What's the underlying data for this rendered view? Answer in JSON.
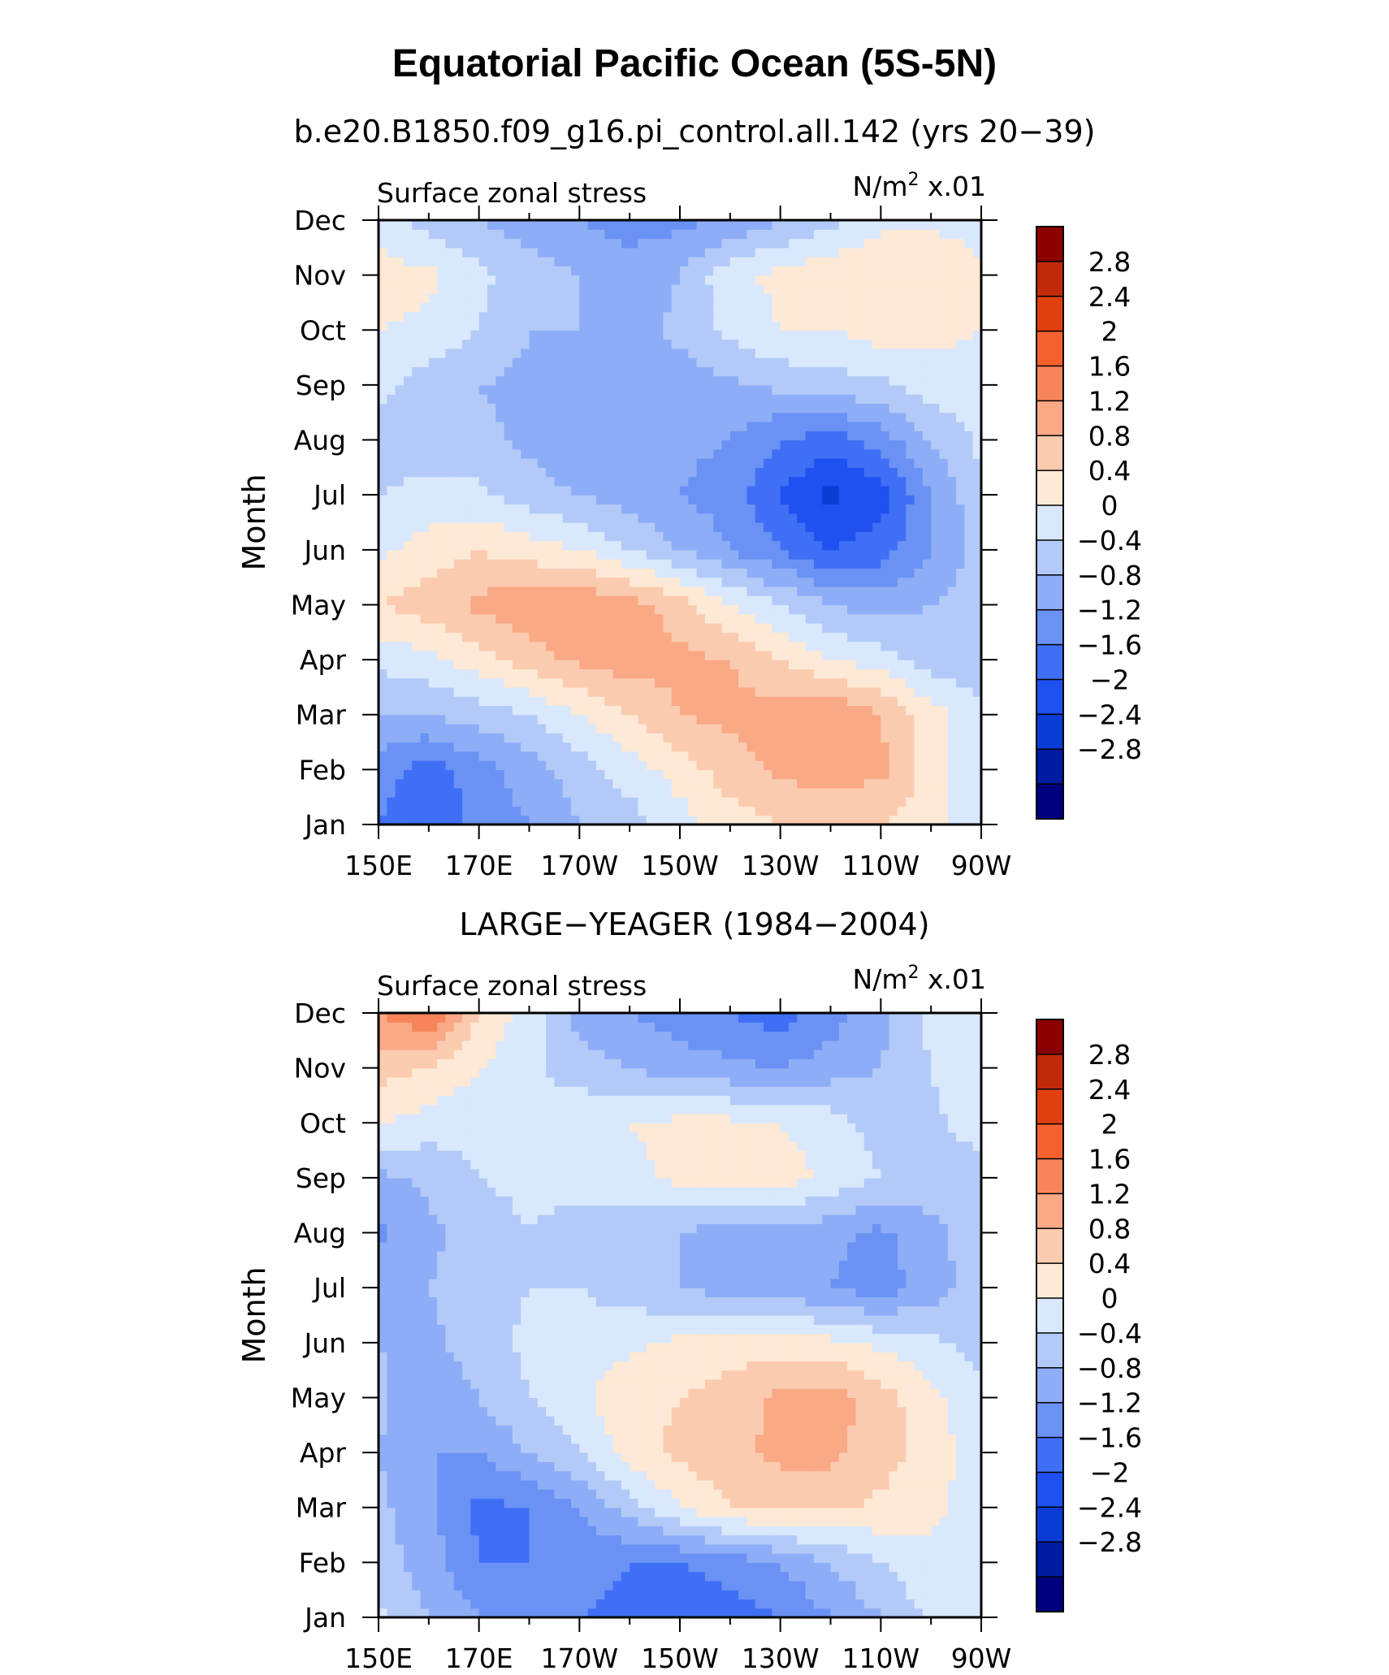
{
  "title": "Equatorial Pacific Ocean (5S-5N)",
  "colors": [
    "#00007f",
    "#001ba0",
    "#0b3cd6",
    "#1f50f0",
    "#3f6ff5",
    "#6a92f5",
    "#8eadf7",
    "#b3caf8",
    "#d9e8fc",
    "#fde9d5",
    "#fbcbb0",
    "#f9a985",
    "#f7855b",
    "#f4612f",
    "#e03f10",
    "#c02a0a",
    "#8b0000"
  ],
  "colorbar": {
    "labels": [
      "2.8",
      "2.4",
      "2",
      "1.6",
      "1.2",
      "0.8",
      "0.4",
      "0",
      "−0.4",
      "−0.8",
      "−1.2",
      "−1.6",
      "−2",
      "−2.4",
      "−2.8"
    ]
  },
  "panels": [
    {
      "subtitle": "b.e20.B1850.f09_g16.pi_control.all.142 (yrs 20−39)",
      "left_label": "Surface zonal stress",
      "right_label_main": "N/m",
      "right_label_sup": "2",
      "right_label_tail": " x.01"
    },
    {
      "subtitle": "LARGE−YEAGER (1984−2004)",
      "left_label": "Surface zonal stress",
      "right_label_main": "N/m",
      "right_label_sup": "2",
      "right_label_tail": " x.01"
    }
  ],
  "chart_data": [
    {
      "type": "heatmap",
      "title": "Equatorial Pacific Ocean (5S-5N)",
      "subtitle": "b.e20.B1850.f09_g16.pi_control.all.142 (yrs 20−39)",
      "xlabel": "",
      "ylabel": "Month",
      "x_ticks": [
        "150E",
        "170E",
        "170W",
        "150W",
        "130W",
        "110W",
        "90W"
      ],
      "y_ticks": [
        "Jan",
        "Feb",
        "Mar",
        "Apr",
        "May",
        "Jun",
        "Jul",
        "Aug",
        "Sep",
        "Oct",
        "Nov",
        "Dec"
      ],
      "x": [
        150,
        160,
        170,
        180,
        190,
        200,
        210,
        220,
        230,
        240,
        250,
        260,
        270
      ],
      "values": [
        [
          -1.2,
          -1.6,
          -1.0,
          -0.8,
          -0.4,
          -0.2,
          0.2,
          0.6,
          0.8,
          0.8,
          0.8,
          0.6,
          0.1
        ],
        [
          -1.0,
          -1.4,
          -1.0,
          -0.6,
          -0.2,
          0.2,
          0.6,
          1.0,
          1.3,
          1.4,
          1.3,
          0.6,
          0.1
        ],
        [
          -0.4,
          -0.4,
          -0.2,
          0.0,
          0.4,
          0.8,
          1.2,
          1.3,
          1.4,
          1.6,
          1.2,
          0.6,
          0.1
        ],
        [
          0.1,
          0.3,
          0.6,
          1.0,
          1.3,
          1.4,
          1.3,
          1.2,
          0.8,
          0.4,
          0.2,
          -0.2,
          -0.3
        ],
        [
          0.8,
          1.0,
          1.3,
          1.5,
          1.6,
          1.4,
          1.0,
          0.4,
          0.0,
          -0.4,
          -0.6,
          -0.4,
          -0.2
        ],
        [
          0.3,
          0.6,
          0.8,
          0.6,
          0.4,
          0.0,
          -0.4,
          -0.8,
          -1.2,
          -1.6,
          -1.4,
          -0.8,
          -0.2
        ],
        [
          0.0,
          0.1,
          0.1,
          -0.2,
          -0.4,
          -0.6,
          -0.8,
          -1.0,
          -1.6,
          -2.1,
          -1.8,
          -0.8,
          -0.1
        ],
        [
          -0.1,
          -0.2,
          -0.3,
          -0.5,
          -0.8,
          -0.8,
          -0.7,
          -0.8,
          -1.2,
          -1.4,
          -1.0,
          -0.4,
          0.1
        ],
        [
          0.1,
          -0.2,
          -0.4,
          -0.5,
          -0.6,
          -0.6,
          -0.6,
          -0.5,
          -0.3,
          -0.2,
          -0.1,
          0.2,
          0.3
        ],
        [
          0.4,
          0.3,
          0.0,
          -0.4,
          -0.4,
          -0.6,
          -0.3,
          0.1,
          0.4,
          0.4,
          0.6,
          0.5,
          0.4
        ],
        [
          0.6,
          0.5,
          0.1,
          -0.2,
          -0.4,
          -0.6,
          -0.4,
          0.3,
          0.5,
          0.7,
          0.8,
          0.8,
          0.5
        ],
        [
          0.2,
          -0.2,
          -0.4,
          -0.6,
          -0.8,
          -1.0,
          -0.9,
          -0.8,
          -0.4,
          -0.1,
          0.3,
          0.3,
          0.2
        ]
      ],
      "levels": [
        -2.8,
        -2.4,
        -2.0,
        -1.6,
        -1.2,
        -0.8,
        -0.4,
        0,
        0.4,
        0.8,
        1.2,
        1.6,
        2.0,
        2.4,
        2.8
      ]
    },
    {
      "type": "heatmap",
      "title": "Equatorial Pacific Ocean (5S-5N)",
      "subtitle": "LARGE−YEAGER (1984−2004)",
      "xlabel": "",
      "ylabel": "Month",
      "x_ticks": [
        "150E",
        "170E",
        "170W",
        "150W",
        "130W",
        "110W",
        "90W"
      ],
      "y_ticks": [
        "Jan",
        "Feb",
        "Mar",
        "Apr",
        "May",
        "Jun",
        "Jul",
        "Aug",
        "Sep",
        "Oct",
        "Nov",
        "Dec"
      ],
      "x": [
        150,
        160,
        170,
        180,
        190,
        200,
        210,
        220,
        230,
        240,
        250,
        260,
        270
      ],
      "values": [
        [
          0.1,
          -0.4,
          -0.8,
          -1.0,
          -1.2,
          -1.4,
          -1.6,
          -1.4,
          -1.2,
          -0.8,
          -0.4,
          0.1,
          0.2
        ],
        [
          -0.2,
          -0.6,
          -1.2,
          -1.2,
          -1.0,
          -1.2,
          -1.2,
          -1.0,
          -0.8,
          -0.4,
          0.0,
          0.3,
          0.2
        ],
        [
          -0.3,
          -0.7,
          -1.3,
          -1.2,
          -0.8,
          -0.2,
          0.4,
          0.8,
          0.9,
          0.9,
          0.7,
          0.5,
          0.2
        ],
        [
          -0.4,
          -0.8,
          -0.8,
          -0.4,
          0.0,
          0.6,
          0.9,
          1.1,
          1.3,
          1.3,
          1.0,
          0.6,
          0.2
        ],
        [
          -0.3,
          -0.7,
          -0.4,
          0.0,
          0.3,
          0.7,
          0.8,
          1.0,
          1.3,
          1.4,
          1.0,
          0.5,
          0.1
        ],
        [
          -0.4,
          -0.5,
          -0.2,
          0.1,
          0.2,
          0.3,
          0.5,
          0.6,
          0.6,
          0.5,
          0.3,
          0.1,
          -0.2
        ],
        [
          -0.6,
          -0.4,
          -0.2,
          0.0,
          0.0,
          -0.2,
          -0.4,
          -0.6,
          -0.6,
          -0.8,
          -1.0,
          -0.6,
          -0.2
        ],
        [
          -0.9,
          -0.5,
          -0.2,
          0.0,
          -0.2,
          -0.4,
          -0.4,
          -0.7,
          -0.5,
          -0.7,
          -0.9,
          -0.5,
          -0.2
        ],
        [
          -0.5,
          -0.3,
          0.0,
          0.1,
          0.2,
          0.3,
          0.5,
          0.6,
          0.6,
          0.3,
          0.0,
          -0.2,
          -0.2
        ],
        [
          0.4,
          0.2,
          0.1,
          0.1,
          0.3,
          0.4,
          0.5,
          0.5,
          0.4,
          0.2,
          -0.2,
          -0.1,
          0.2
        ],
        [
          1.0,
          0.8,
          0.4,
          0.1,
          -0.2,
          -0.4,
          -0.6,
          -0.7,
          -0.8,
          -0.6,
          -0.4,
          0.0,
          0.4
        ],
        [
          1.6,
          2.0,
          0.8,
          0.2,
          -0.6,
          -0.8,
          -1.0,
          -1.2,
          -1.4,
          -1.0,
          -0.5,
          0.1,
          0.3
        ]
      ],
      "levels": [
        -2.8,
        -2.4,
        -2.0,
        -1.6,
        -1.2,
        -0.8,
        -0.4,
        0,
        0.4,
        0.8,
        1.2,
        1.6,
        2.0,
        2.4,
        2.8
      ]
    }
  ]
}
